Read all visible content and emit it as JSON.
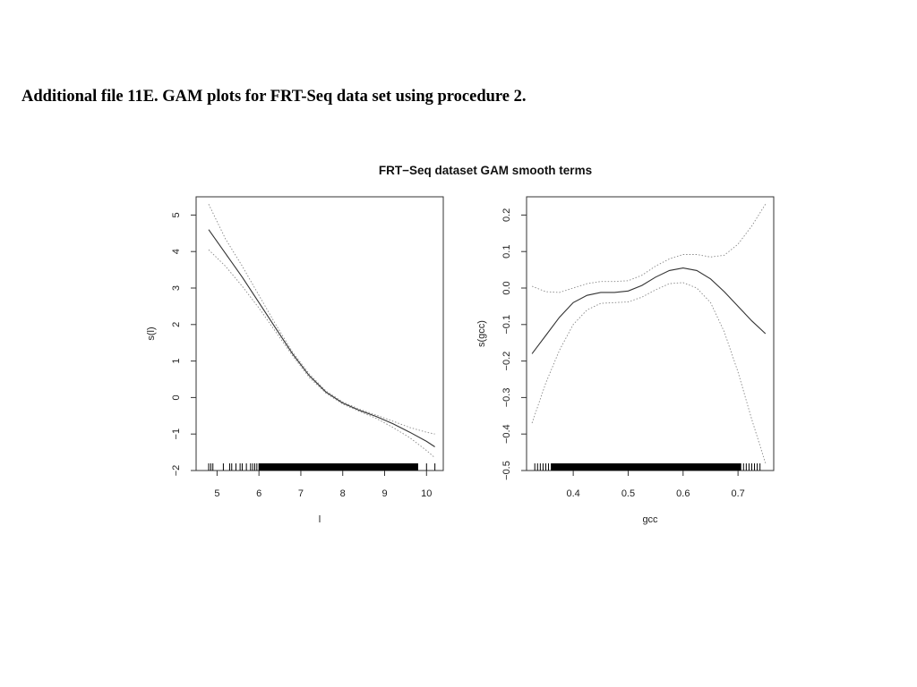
{
  "caption": "Additional file 11E. GAM plots for FRT-Seq data set using procedure 2.",
  "figure_title": "FRT−Seq dataset GAM smooth terms",
  "colors": {
    "smooth": "#333333",
    "band": "#888888",
    "frame": "#333333",
    "rug": "#000000"
  },
  "chart_data": [
    {
      "type": "line",
      "xlabel": "l",
      "ylabel": "s(l)",
      "xlim": [
        4.5,
        10.4
      ],
      "ylim": [
        -2,
        5.5
      ],
      "xticks": [
        5,
        6,
        7,
        8,
        9,
        10
      ],
      "xtick_labels": [
        "5",
        "6",
        "7",
        "8",
        "9",
        "10"
      ],
      "yticks": [
        -2,
        -1,
        0,
        1,
        2,
        3,
        4,
        5
      ],
      "ytick_labels": [
        "−2",
        "−1",
        "0",
        "1",
        "2",
        "3",
        "4",
        "5"
      ],
      "x": [
        4.8,
        5.2,
        5.6,
        6.0,
        6.4,
        6.8,
        7.2,
        7.6,
        8.0,
        8.4,
        8.8,
        9.2,
        9.6,
        10.0,
        10.2
      ],
      "series": [
        {
          "role": "estimate",
          "values": [
            4.6,
            3.95,
            3.3,
            2.6,
            1.9,
            1.2,
            0.6,
            0.15,
            -0.15,
            -0.35,
            -0.52,
            -0.72,
            -0.95,
            -1.2,
            -1.35
          ]
        },
        {
          "role": "upper",
          "values": [
            5.3,
            4.35,
            3.6,
            2.8,
            2.0,
            1.25,
            0.65,
            0.18,
            -0.12,
            -0.32,
            -0.48,
            -0.65,
            -0.82,
            -0.95,
            -1.0
          ]
        },
        {
          "role": "lower",
          "values": [
            4.05,
            3.6,
            3.05,
            2.45,
            1.8,
            1.15,
            0.55,
            0.12,
            -0.18,
            -0.38,
            -0.57,
            -0.82,
            -1.1,
            -1.45,
            -1.65
          ]
        }
      ],
      "rug": [
        4.8,
        4.85,
        4.9,
        5.15,
        5.3,
        5.35,
        5.45,
        5.55,
        5.6,
        5.7,
        5.8,
        5.85,
        5.9,
        5.95,
        6.0,
        10.0,
        10.2
      ]
    },
    {
      "type": "line",
      "xlabel": "gcc",
      "ylabel": "s(gcc)",
      "xlim": [
        0.315,
        0.765
      ],
      "ylim": [
        -0.5,
        0.25
      ],
      "xticks": [
        0.4,
        0.5,
        0.6,
        0.7
      ],
      "xtick_labels": [
        "0.4",
        "0.5",
        "0.6",
        "0.7"
      ],
      "yticks": [
        -0.5,
        -0.4,
        -0.3,
        -0.2,
        -0.1,
        0.0,
        0.1,
        0.2
      ],
      "ytick_labels": [
        "−0.5",
        "−0.4",
        "−0.3",
        "−0.2",
        "−0.1",
        "0.0",
        "0.1",
        "0.2"
      ],
      "x": [
        0.325,
        0.35,
        0.375,
        0.4,
        0.425,
        0.45,
        0.475,
        0.5,
        0.525,
        0.55,
        0.575,
        0.6,
        0.625,
        0.65,
        0.675,
        0.7,
        0.725,
        0.75
      ],
      "series": [
        {
          "role": "estimate",
          "values": [
            -0.18,
            -0.13,
            -0.08,
            -0.04,
            -0.02,
            -0.012,
            -0.012,
            -0.008,
            0.007,
            0.03,
            0.048,
            0.055,
            0.048,
            0.025,
            -0.01,
            -0.05,
            -0.09,
            -0.125
          ]
        },
        {
          "role": "upper",
          "values": [
            0.005,
            -0.01,
            -0.012,
            0.0,
            0.012,
            0.018,
            0.018,
            0.02,
            0.035,
            0.06,
            0.08,
            0.092,
            0.092,
            0.085,
            0.09,
            0.12,
            0.17,
            0.23
          ]
        },
        {
          "role": "lower",
          "values": [
            -0.37,
            -0.26,
            -0.17,
            -0.1,
            -0.06,
            -0.042,
            -0.04,
            -0.038,
            -0.025,
            -0.005,
            0.012,
            0.015,
            0.0,
            -0.04,
            -0.12,
            -0.23,
            -0.36,
            -0.48
          ]
        }
      ],
      "rug": [
        0.33,
        0.335,
        0.34,
        0.345,
        0.35,
        0.355,
        0.36,
        0.705,
        0.71,
        0.715,
        0.72,
        0.725,
        0.73,
        0.735,
        0.74
      ]
    }
  ]
}
